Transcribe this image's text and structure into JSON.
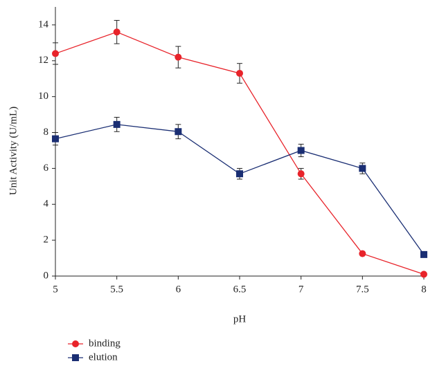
{
  "chart_data": {
    "type": "line",
    "x_label": "pH",
    "y_label": "Unit Activity (U/mL)",
    "x": [
      5,
      5.5,
      6,
      6.5,
      7,
      7.5,
      8
    ],
    "series": [
      {
        "name": "binding",
        "color": "#e8232a",
        "marker": "circle",
        "values": [
          12.4,
          13.6,
          12.2,
          11.3,
          5.7,
          1.25,
          0.1
        ],
        "errors": [
          0.6,
          0.65,
          0.6,
          0.55,
          0.3,
          null,
          null
        ]
      },
      {
        "name": "elution",
        "color": "#1a2e73",
        "marker": "square",
        "values": [
          7.65,
          8.45,
          8.05,
          5.7,
          7.0,
          6.0,
          1.2
        ],
        "errors": [
          0.35,
          0.4,
          0.4,
          0.3,
          0.35,
          0.3,
          null
        ]
      }
    ],
    "xlim": [
      5,
      8
    ],
    "xticks": [
      5,
      5.5,
      6,
      6.5,
      7,
      7.5,
      8
    ],
    "ylim": [
      0,
      15
    ],
    "yticks": [
      0,
      2,
      4,
      6,
      8,
      10,
      12,
      14
    ],
    "grid": false,
    "legend": "bottom-left"
  }
}
